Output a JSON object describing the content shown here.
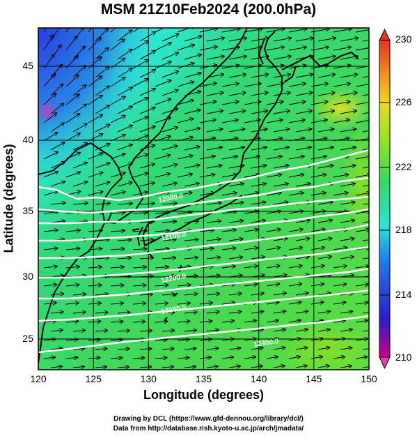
{
  "title": "MSM 21Z10Feb2024 (200.0hPa)",
  "x_axis_label": "Longitude (degrees)",
  "y_axis_label": "Latitude  (degrees)",
  "credits": {
    "line1": "Drawing by DCL (https://www.gfd-dennou.org/library/dcl/)",
    "line2": "Data from http://database.rish.kyoto-u.ac.jp/arch/jmadata/"
  },
  "chart_data": {
    "type": "map",
    "xlim": [
      120,
      150
    ],
    "ylim": [
      22.5,
      47.5
    ],
    "x_ticks": [
      "120",
      "125",
      "130",
      "135",
      "140",
      "145",
      "150"
    ],
    "y_ticks": [
      "25",
      "30",
      "35",
      "40",
      "45"
    ],
    "colorbar": {
      "min": 210,
      "max": 230,
      "tick_labels": [
        "230",
        "226",
        "222",
        "218",
        "214",
        "210"
      ],
      "colors": [
        "#c8008c",
        "#2a1ec8",
        "#1ea0f0",
        "#2ce6d2",
        "#30d860",
        "#9ae61e",
        "#f0d81e",
        "#f08c1e",
        "#e6321e"
      ]
    },
    "contour_labels": [
      "12000.0",
      "12100.0",
      "12200.0",
      "12300.0",
      "12400.0"
    ],
    "field": "temperature",
    "grid": true
  }
}
